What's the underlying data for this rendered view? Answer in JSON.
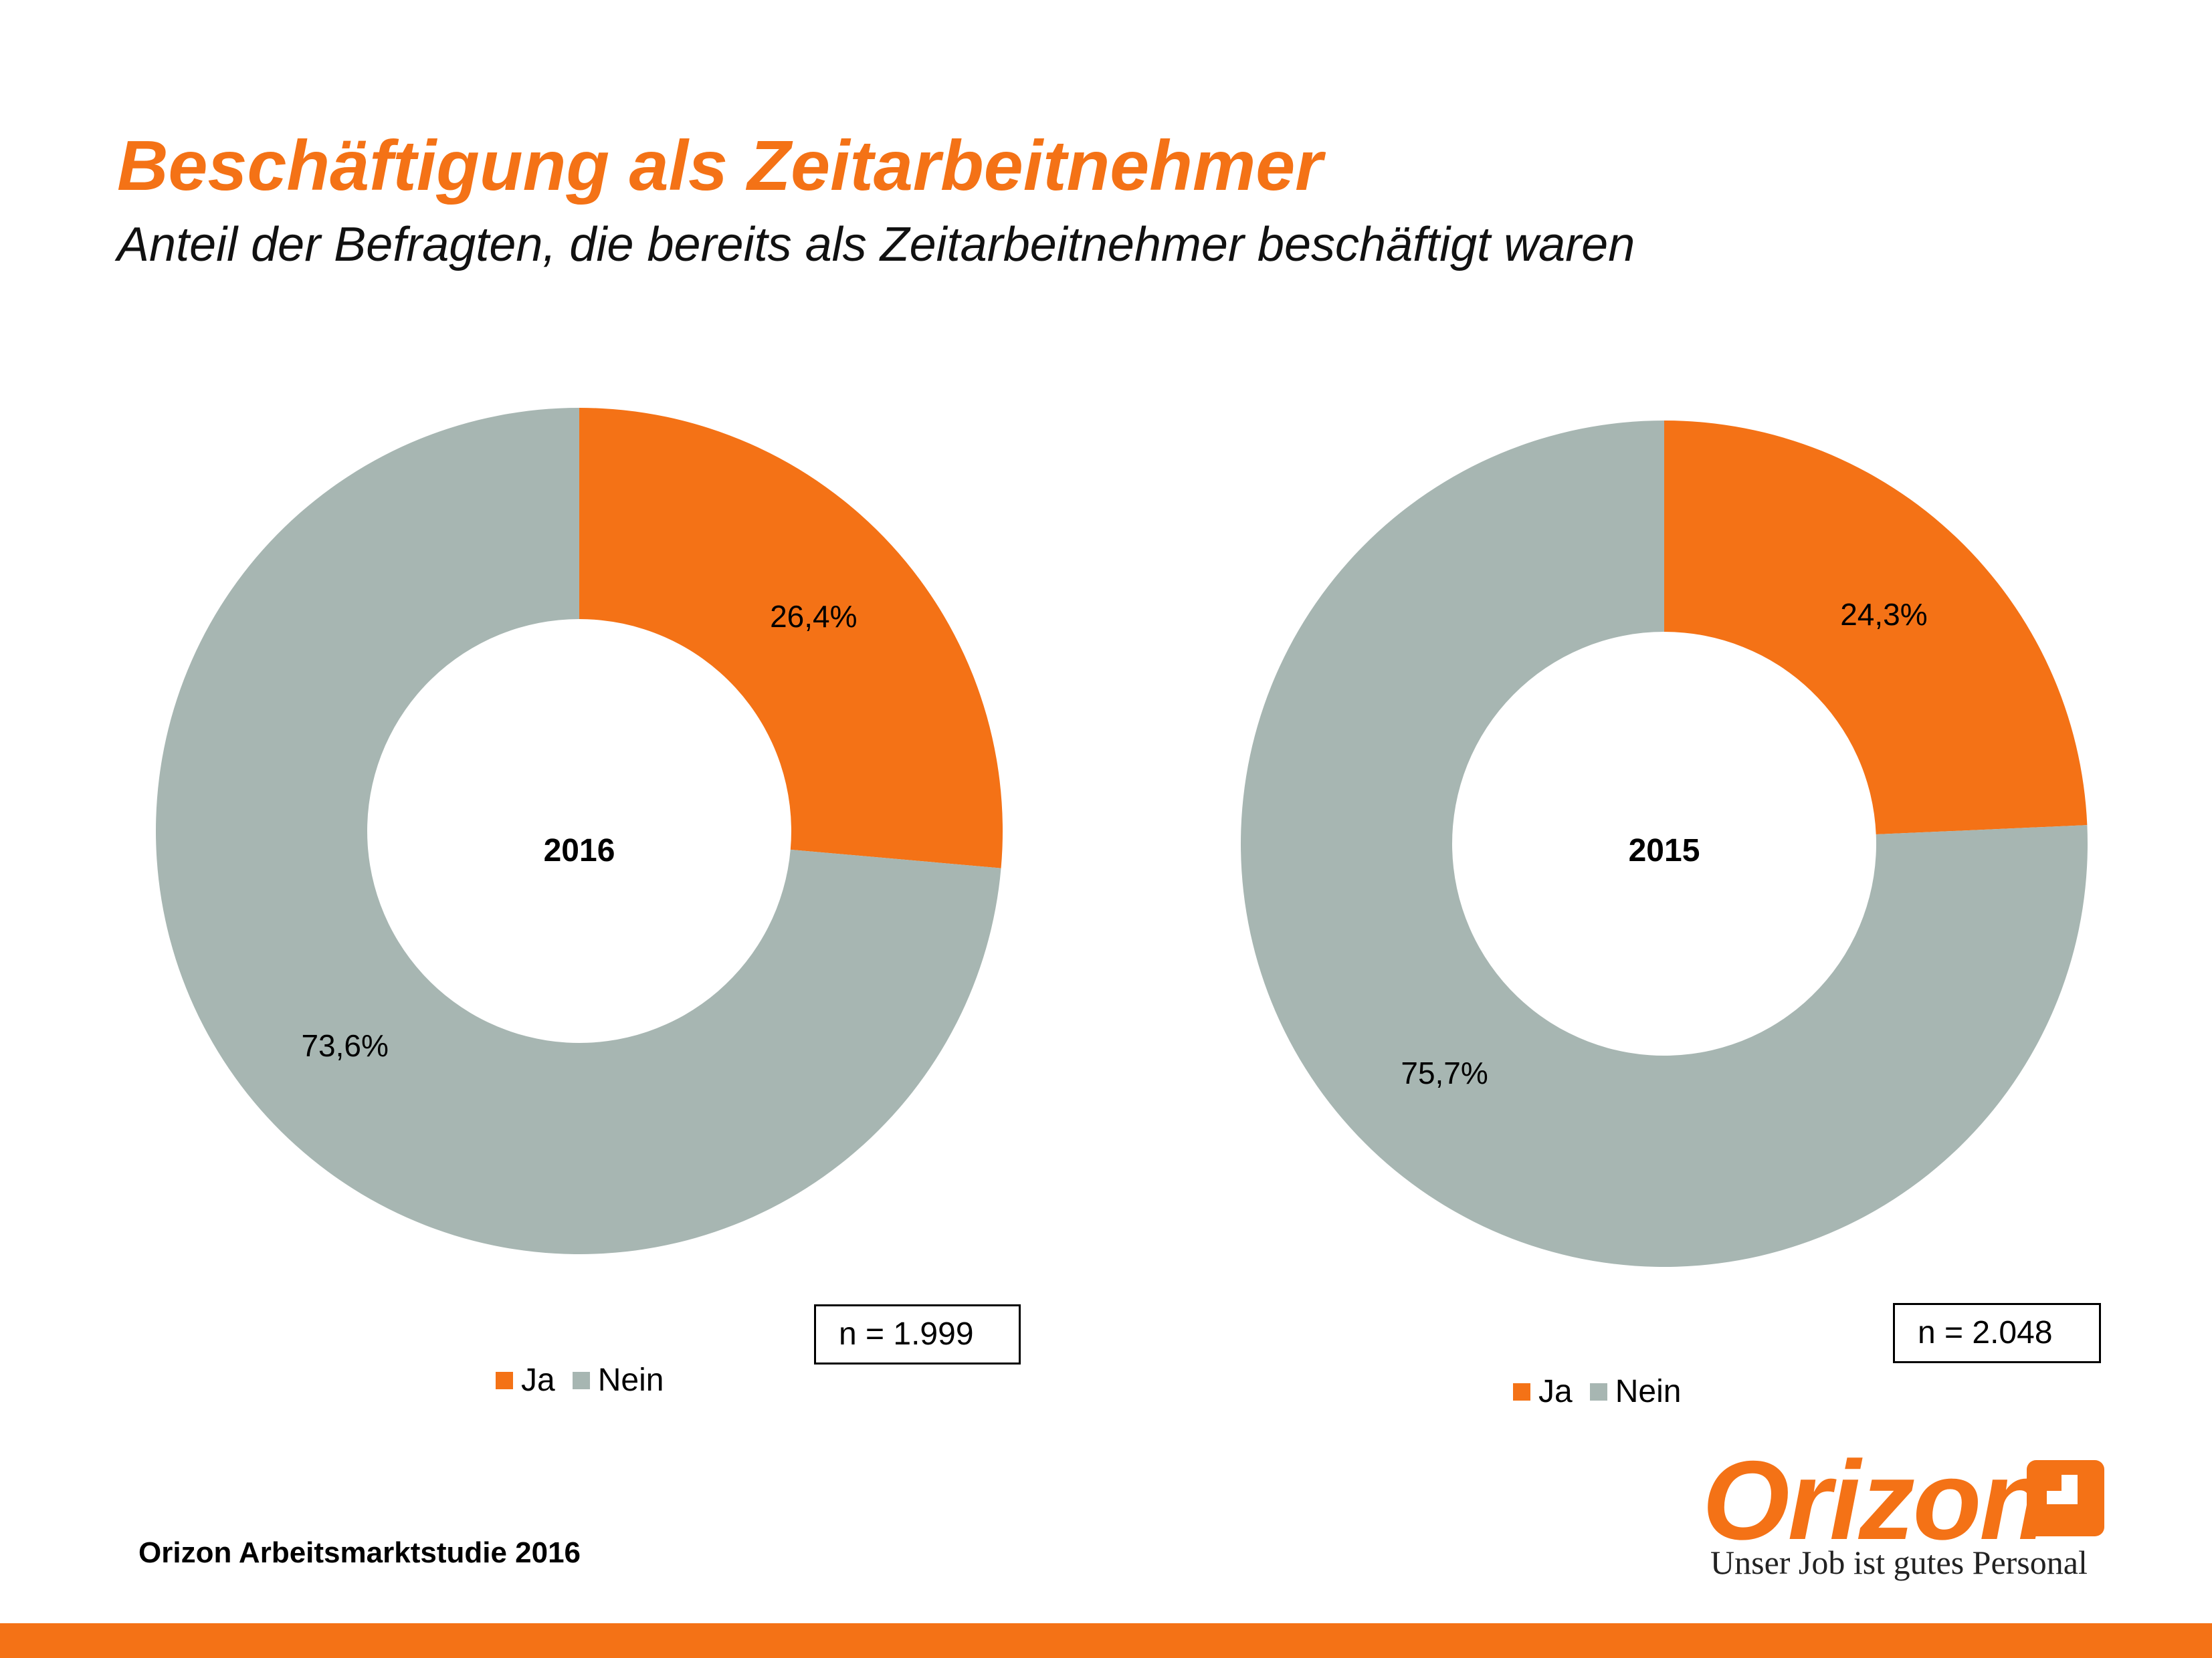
{
  "title": "Beschäftigung als Zeitarbeitnehmer",
  "subtitle": "Anteil der Befragten, die bereits als Zeitarbeitnehmer beschäftigt waren",
  "source": "Orizon Arbeitsmarktstudie 2016",
  "logo": {
    "wordmark": "Orizon",
    "tagline": "Unser Job ist gutes Personal"
  },
  "colors": {
    "accent": "#f47216",
    "ja": "#f47216",
    "nein": "#a7b6b2"
  },
  "chart_data": [
    {
      "type": "pie",
      "variant": "donut",
      "center_label": "2016",
      "categories": [
        "Ja",
        "Nein"
      ],
      "values": [
        26.4,
        73.6
      ],
      "value_labels": [
        "26,4%",
        "73,6%"
      ],
      "sample_size": "n = 1.999",
      "legend": {
        "position": "bottom",
        "entries": [
          "Ja",
          "Nein"
        ]
      }
    },
    {
      "type": "pie",
      "variant": "donut",
      "center_label": "2015",
      "categories": [
        "Ja",
        "Nein"
      ],
      "values": [
        24.3,
        75.7
      ],
      "value_labels": [
        "24,3%",
        "75,7%"
      ],
      "sample_size": "n = 2.048",
      "legend": {
        "position": "bottom",
        "entries": [
          "Ja",
          "Nein"
        ]
      }
    }
  ]
}
